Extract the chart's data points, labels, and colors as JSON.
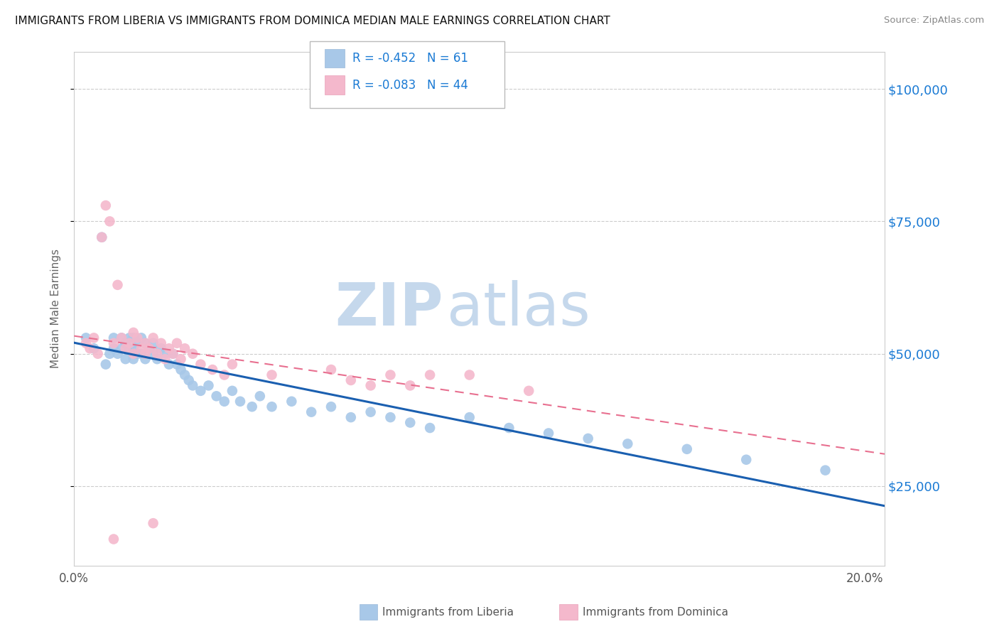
{
  "title": "IMMIGRANTS FROM LIBERIA VS IMMIGRANTS FROM DOMINICA MEDIAN MALE EARNINGS CORRELATION CHART",
  "source": "Source: ZipAtlas.com",
  "ylabel": "Median Male Earnings",
  "xlim": [
    0.0,
    0.205
  ],
  "ylim": [
    10000,
    107000
  ],
  "yticks": [
    25000,
    50000,
    75000,
    100000
  ],
  "ytick_labels": [
    "$25,000",
    "$50,000",
    "$75,000",
    "$100,000"
  ],
  "xticks": [
    0.0,
    0.025,
    0.05,
    0.075,
    0.1,
    0.125,
    0.15,
    0.175,
    0.2
  ],
  "xtick_labels": [
    "0.0%",
    "",
    "",
    "",
    "",
    "",
    "",
    "",
    "20.0%"
  ],
  "legend_R1": "-0.452",
  "legend_N1": "61",
  "legend_R2": "-0.083",
  "legend_N2": "44",
  "color_liberia": "#a8c8e8",
  "color_dominica": "#f4b8cc",
  "line_color_liberia": "#1a5fb0",
  "line_color_dominica": "#e87090",
  "watermark_zip": "ZIP",
  "watermark_atlas": "atlas",
  "watermark_color_zip": "#c5d8ec",
  "watermark_color_atlas": "#c5d8ec",
  "liberia_x": [
    0.003,
    0.005,
    0.007,
    0.008,
    0.009,
    0.01,
    0.01,
    0.011,
    0.012,
    0.012,
    0.013,
    0.013,
    0.014,
    0.014,
    0.015,
    0.015,
    0.015,
    0.016,
    0.016,
    0.017,
    0.017,
    0.018,
    0.018,
    0.019,
    0.02,
    0.02,
    0.021,
    0.022,
    0.023,
    0.024,
    0.025,
    0.026,
    0.027,
    0.028,
    0.029,
    0.03,
    0.032,
    0.034,
    0.036,
    0.038,
    0.04,
    0.042,
    0.045,
    0.047,
    0.05,
    0.055,
    0.06,
    0.065,
    0.07,
    0.075,
    0.08,
    0.085,
    0.09,
    0.1,
    0.11,
    0.12,
    0.13,
    0.14,
    0.155,
    0.17,
    0.19
  ],
  "liberia_y": [
    53000,
    51000,
    72000,
    48000,
    50000,
    53000,
    51000,
    50000,
    53000,
    51000,
    52000,
    49000,
    51000,
    53000,
    53000,
    51000,
    49000,
    52000,
    50000,
    53000,
    50000,
    52000,
    49000,
    51000,
    50000,
    52000,
    49000,
    51000,
    50000,
    48000,
    50000,
    48000,
    47000,
    46000,
    45000,
    44000,
    43000,
    44000,
    42000,
    41000,
    43000,
    41000,
    40000,
    42000,
    40000,
    41000,
    39000,
    40000,
    38000,
    39000,
    38000,
    37000,
    36000,
    38000,
    36000,
    35000,
    34000,
    33000,
    32000,
    30000,
    28000
  ],
  "dominica_x": [
    0.003,
    0.004,
    0.005,
    0.006,
    0.007,
    0.008,
    0.009,
    0.01,
    0.011,
    0.012,
    0.013,
    0.014,
    0.015,
    0.015,
    0.016,
    0.017,
    0.018,
    0.018,
    0.019,
    0.02,
    0.021,
    0.022,
    0.023,
    0.024,
    0.025,
    0.026,
    0.027,
    0.028,
    0.03,
    0.032,
    0.035,
    0.038,
    0.04,
    0.05,
    0.065,
    0.07,
    0.075,
    0.08,
    0.085,
    0.09,
    0.1,
    0.115,
    0.02,
    0.01
  ],
  "dominica_y": [
    52000,
    51000,
    53000,
    50000,
    72000,
    78000,
    75000,
    52000,
    63000,
    53000,
    51000,
    52000,
    50000,
    54000,
    53000,
    51000,
    50000,
    52000,
    51000,
    53000,
    50000,
    52000,
    49000,
    51000,
    50000,
    52000,
    49000,
    51000,
    50000,
    48000,
    47000,
    46000,
    48000,
    46000,
    47000,
    45000,
    44000,
    46000,
    44000,
    46000,
    46000,
    43000,
    18000,
    15000
  ]
}
